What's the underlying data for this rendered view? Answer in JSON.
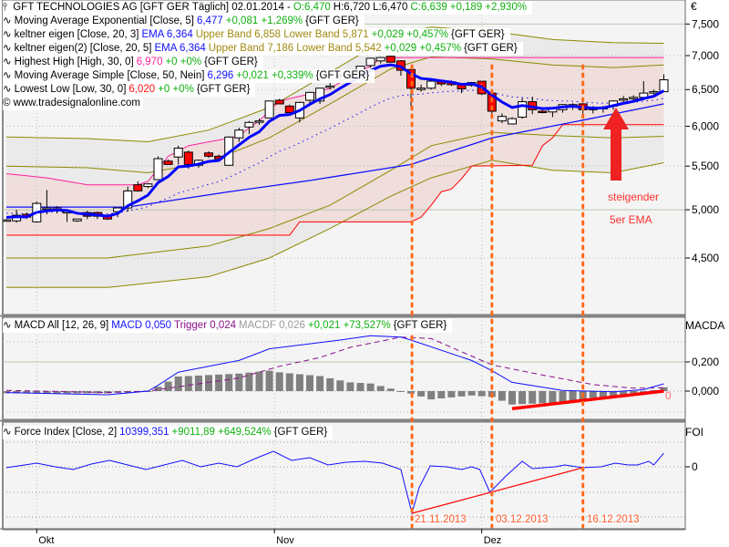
{
  "chart_data": [
    {
      "type": "candlestick",
      "title": "GFT TECHNOLOGIES AG [GFT GER  Täglich] 02.01.2014",
      "header_values": {
        "O": "O:6,470",
        "H": "H:6,720",
        "L": "L:6,470",
        "C": "C:6,639",
        "change": "+0,189",
        "change_pct": "+2,930%"
      },
      "y_scale": "log",
      "currency_label": "€",
      "y_ticks": [
        "7,500",
        "7,000",
        "6,500",
        "6,000",
        "5,500",
        "5,000",
        "4,500"
      ],
      "y_tick_values": [
        7.5,
        7.0,
        6.5,
        6.0,
        5.5,
        5.0,
        4.5
      ],
      "x_ticks": [
        "Okt",
        "Nov",
        "Dez"
      ],
      "x_tick_bars": [
        3,
        26.5,
        47
      ],
      "ohlc": [
        [
          4.89,
          4.9,
          4.88,
          4.89
        ],
        [
          4.88,
          5.0,
          4.86,
          4.94
        ],
        [
          4.95,
          4.97,
          4.9,
          4.92
        ],
        [
          4.87,
          5.09,
          4.86,
          5.07
        ],
        [
          5.02,
          5.22,
          4.95,
          5.02
        ],
        [
          5.02,
          5.04,
          4.96,
          5.02
        ],
        [
          4.98,
          5.0,
          4.87,
          4.98
        ],
        [
          4.88,
          4.89,
          4.87,
          4.9
        ],
        [
          4.97,
          4.99,
          4.9,
          4.93
        ],
        [
          4.97,
          4.98,
          4.9,
          4.93
        ],
        [
          4.93,
          4.95,
          4.89,
          4.9
        ],
        [
          4.98,
          5.02,
          4.92,
          5.02
        ],
        [
          5.02,
          5.26,
          4.98,
          5.21
        ],
        [
          5.28,
          5.32,
          5.2,
          5.21
        ],
        [
          5.26,
          5.3,
          5.24,
          5.29
        ],
        [
          5.34,
          5.62,
          5.34,
          5.59
        ],
        [
          5.56,
          5.58,
          5.52,
          5.52
        ],
        [
          5.61,
          5.75,
          5.52,
          5.72
        ],
        [
          5.67,
          5.69,
          5.47,
          5.52
        ],
        [
          5.51,
          5.58,
          5.48,
          5.57
        ],
        [
          5.66,
          5.68,
          5.6,
          5.62
        ],
        [
          5.62,
          5.64,
          5.58,
          5.59
        ],
        [
          5.51,
          5.87,
          5.51,
          5.86
        ],
        [
          5.85,
          5.98,
          5.8,
          5.95
        ],
        [
          5.99,
          6.07,
          5.9,
          6.05
        ],
        [
          6.07,
          6.1,
          6.02,
          6.07
        ],
        [
          6.11,
          6.34,
          6.11,
          6.34
        ],
        [
          6.35,
          6.37,
          6.3,
          6.3
        ],
        [
          6.27,
          6.29,
          6.18,
          6.18
        ],
        [
          6.11,
          6.33,
          6.05,
          6.32
        ],
        [
          6.35,
          6.47,
          6.3,
          6.46
        ],
        [
          6.34,
          6.52,
          6.3,
          6.52
        ],
        [
          6.55,
          6.6,
          6.5,
          6.55
        ],
        [
          6.71,
          6.73,
          6.6,
          6.7
        ],
        [
          6.69,
          6.77,
          6.62,
          6.77
        ],
        [
          6.74,
          6.84,
          6.72,
          6.84
        ],
        [
          6.85,
          6.96,
          6.82,
          6.96
        ],
        [
          6.92,
          6.98,
          6.88,
          6.97
        ],
        [
          6.99,
          7.0,
          6.9,
          6.9
        ],
        [
          6.92,
          6.93,
          6.7,
          6.78
        ],
        [
          6.79,
          6.8,
          6.23,
          6.52
        ],
        [
          6.52,
          6.57,
          6.47,
          6.52
        ],
        [
          6.52,
          6.63,
          6.5,
          6.62
        ],
        [
          6.61,
          6.63,
          6.55,
          6.58
        ],
        [
          6.61,
          6.63,
          6.55,
          6.57
        ],
        [
          6.57,
          6.59,
          6.45,
          6.51
        ],
        [
          6.56,
          6.61,
          6.54,
          6.6
        ],
        [
          6.62,
          6.63,
          6.42,
          6.44
        ],
        [
          6.45,
          6.47,
          6.15,
          6.2
        ],
        [
          6.07,
          6.17,
          6.04,
          6.13
        ],
        [
          6.03,
          6.12,
          6.02,
          6.1
        ],
        [
          6.12,
          6.38,
          6.1,
          6.33
        ],
        [
          6.33,
          6.4,
          6.16,
          6.22
        ],
        [
          6.2,
          6.24,
          6.17,
          6.19
        ],
        [
          6.19,
          6.25,
          6.12,
          6.25
        ],
        [
          6.22,
          6.3,
          6.18,
          6.29
        ],
        [
          6.26,
          6.31,
          6.22,
          6.29
        ],
        [
          6.3,
          6.31,
          6.15,
          6.22
        ],
        [
          6.25,
          6.27,
          6.17,
          6.22
        ],
        [
          6.25,
          6.27,
          6.18,
          6.25
        ],
        [
          6.27,
          6.35,
          6.22,
          6.34
        ],
        [
          6.37,
          6.41,
          6.31,
          6.37
        ],
        [
          6.39,
          6.42,
          6.34,
          6.39
        ],
        [
          6.39,
          6.62,
          6.37,
          6.45
        ],
        [
          6.47,
          6.5,
          6.43,
          6.47
        ],
        [
          6.47,
          6.72,
          6.47,
          6.64
        ]
      ],
      "overlays": {
        "sma50": [
          [
            0,
            5.03
          ],
          [
            12,
            5.03
          ],
          [
            22,
            5.2
          ],
          [
            30,
            5.33
          ],
          [
            40,
            5.52
          ],
          [
            48,
            5.85
          ],
          [
            57,
            6.08
          ],
          [
            65,
            6.3
          ]
        ],
        "keltner_outer_upper": [
          [
            0,
            5.86
          ],
          [
            8,
            5.84
          ],
          [
            14,
            5.8
          ],
          [
            20,
            5.95
          ],
          [
            26,
            6.25
          ],
          [
            32,
            6.75
          ],
          [
            38,
            7.3
          ],
          [
            42,
            7.45
          ],
          [
            48,
            7.38
          ],
          [
            54,
            7.25
          ],
          [
            60,
            7.2
          ],
          [
            65,
            7.19
          ]
        ],
        "keltner_inner_upper": [
          [
            0,
            5.5
          ],
          [
            8,
            5.48
          ],
          [
            14,
            5.42
          ],
          [
            20,
            5.55
          ],
          [
            26,
            5.85
          ],
          [
            32,
            6.3
          ],
          [
            38,
            6.8
          ],
          [
            42,
            6.98
          ],
          [
            48,
            6.95
          ],
          [
            54,
            6.86
          ],
          [
            60,
            6.82
          ],
          [
            65,
            6.86
          ]
        ],
        "keltner_inner_lower": [
          [
            0,
            4.5
          ],
          [
            10,
            4.5
          ],
          [
            20,
            4.62
          ],
          [
            26,
            4.8
          ],
          [
            32,
            5.05
          ],
          [
            38,
            5.45
          ],
          [
            42,
            5.75
          ],
          [
            48,
            5.92
          ],
          [
            54,
            5.88
          ],
          [
            60,
            5.85
          ],
          [
            65,
            5.87
          ]
        ],
        "keltner_outer_lower": [
          [
            0,
            4.22
          ],
          [
            10,
            4.22
          ],
          [
            20,
            4.32
          ],
          [
            26,
            4.5
          ],
          [
            32,
            4.8
          ],
          [
            38,
            5.15
          ],
          [
            42,
            5.36
          ],
          [
            48,
            5.57
          ],
          [
            54,
            5.45
          ],
          [
            60,
            5.42
          ],
          [
            65,
            5.54
          ]
        ],
        "highest_high": [
          [
            0,
            5.41
          ],
          [
            4,
            5.36
          ],
          [
            8,
            5.28
          ],
          [
            13,
            5.28
          ],
          [
            14,
            5.32
          ],
          [
            16,
            5.62
          ],
          [
            18,
            5.75
          ],
          [
            23,
            5.87
          ],
          [
            24,
            5.98
          ],
          [
            25,
            6.07
          ],
          [
            27,
            6.34
          ],
          [
            31,
            6.47
          ],
          [
            32,
            6.52
          ],
          [
            33,
            6.6
          ],
          [
            34,
            6.73
          ],
          [
            35,
            6.77
          ],
          [
            36,
            6.84
          ],
          [
            37,
            6.96
          ],
          [
            39,
            6.97
          ],
          [
            65,
            6.97
          ]
        ],
        "lowest_low": [
          [
            0,
            4.73
          ],
          [
            28,
            4.73
          ],
          [
            29,
            4.87
          ],
          [
            40,
            4.87
          ],
          [
            41,
            4.92
          ],
          [
            42,
            5.05
          ],
          [
            43,
            5.2
          ],
          [
            44,
            5.23
          ],
          [
            45,
            5.35
          ],
          [
            46,
            5.5
          ],
          [
            52,
            5.51
          ],
          [
            53,
            5.75
          ],
          [
            54,
            5.85
          ],
          [
            55,
            6.02
          ],
          [
            65,
            6.02
          ]
        ]
      },
      "colors": {
        "up": "#ffffff",
        "down": "#ff0000",
        "ema5": "#0000ff",
        "sma": "#0000ff",
        "keltner": "#808000",
        "highest_high": "#ff1f9f",
        "lowest_low": "#ff0000",
        "band_fill": "#ebebeb",
        "hh_ll_fill": "#f0dede"
      }
    },
    {
      "type": "line",
      "panel": "MACD",
      "y_label": "MACDA",
      "y_ticks": [
        "0,200",
        "0,000"
      ],
      "y_tick_values": [
        0.2,
        0.0
      ],
      "value_label": "0",
      "series": [
        {
          "name": "MACD",
          "points": [
            [
              0,
              -0.01
            ],
            [
              10,
              -0.025
            ],
            [
              14,
              0.0
            ],
            [
              15,
              0.04
            ],
            [
              17,
              0.13
            ],
            [
              23,
              0.21
            ],
            [
              26,
              0.29
            ],
            [
              33,
              0.35
            ],
            [
              36,
              0.38
            ],
            [
              39,
              0.37
            ],
            [
              40,
              0.35
            ],
            [
              46,
              0.21
            ],
            [
              48,
              0.14
            ],
            [
              50,
              0.06
            ],
            [
              55,
              0.005
            ],
            [
              60,
              -0.005
            ],
            [
              63,
              0.01
            ],
            [
              65,
              0.05
            ]
          ]
        },
        {
          "name": "Trigger",
          "points": [
            [
              0,
              0.005
            ],
            [
              10,
              -0.01
            ],
            [
              14,
              0.0
            ],
            [
              17,
              0.03
            ],
            [
              23,
              0.09
            ],
            [
              27,
              0.17
            ],
            [
              31,
              0.23
            ],
            [
              34,
              0.3
            ],
            [
              39,
              0.37
            ],
            [
              42,
              0.36
            ],
            [
              48,
              0.18
            ],
            [
              53,
              0.11
            ],
            [
              58,
              0.045
            ],
            [
              62,
              0.02
            ],
            [
              65,
              0.024
            ]
          ]
        }
      ],
      "trendline": [
        [
          50,
          -0.12
        ],
        [
          65,
          0.0
        ]
      ]
    },
    {
      "type": "line",
      "panel": "Force Index",
      "y_label": "FOI",
      "y_ticks": [
        "0"
      ],
      "y_tick_values": [
        0
      ],
      "series": [
        {
          "name": "Force Index",
          "points": [
            [
              0,
              -700
            ],
            [
              3,
              2800
            ],
            [
              4.8,
              0
            ],
            [
              6.6,
              -2100
            ],
            [
              8.4,
              2100
            ],
            [
              10.2,
              4900
            ],
            [
              12,
              1400
            ],
            [
              13.8,
              -2100
            ],
            [
              15.6,
              1400
            ],
            [
              17.4,
              4900
            ],
            [
              19.2,
              0
            ],
            [
              21,
              2800
            ],
            [
              22.8,
              0
            ],
            [
              24.6,
              6300
            ],
            [
              26.4,
              11900
            ],
            [
              28.2,
              4900
            ],
            [
              30,
              7000
            ],
            [
              31.8,
              1400
            ],
            [
              33.6,
              3500
            ],
            [
              35.4,
              4200
            ],
            [
              37.2,
              2800
            ],
            [
              39,
              -2100
            ],
            [
              40.1,
              -35700
            ],
            [
              40.8,
              -16100
            ],
            [
              41.9,
              700
            ],
            [
              43.5,
              0
            ],
            [
              45,
              -2100
            ],
            [
              46,
              0
            ],
            [
              46.8,
              -2100
            ],
            [
              47.8,
              -19600
            ],
            [
              49.4,
              -7000
            ],
            [
              51,
              4200
            ],
            [
              52,
              -1400
            ],
            [
              54.3,
              0
            ],
            [
              55.2,
              1400
            ],
            [
              57,
              -700
            ],
            [
              58.8,
              0
            ],
            [
              60.2,
              2800
            ],
            [
              61.5,
              1400
            ],
            [
              62.4,
              1400
            ],
            [
              63.5,
              4200
            ],
            [
              64,
              1400
            ],
            [
              65,
              10399
            ]
          ]
        }
      ],
      "trendline": [
        [
          40.1,
          -35700
        ],
        [
          57,
          -700
        ]
      ]
    }
  ],
  "legend": {
    "title": "GFT TECHNOLOGIES AG [GFT GER  Täglich] 02.01.2014 -",
    "ema": {
      "label": "Moving Average Exponential [Close, 5]",
      "value": "6,477",
      "chg": "+0,081 +1,269%",
      "sym": "{GFT GER}"
    },
    "kelt1": {
      "label": "keltner eigen [Close, 20, 3]",
      "ema": "EMA 6,364",
      "bands": "Upper Band 6,858 Lower Band 5,871",
      "chg": "+0,029 +0,457%",
      "sym": "{GFT GER}"
    },
    "kelt2": {
      "label": "keltner eigen(2) [Close, 20, 5]",
      "ema": "EMA 6,364",
      "bands": "Upper Band 7,186 Lower Band 5,542",
      "chg": "+0,029 +0,457%",
      "sym": "{GFT GER}"
    },
    "hh": {
      "label": "Highest High [High, 30, 0]",
      "value": "6,970",
      "chg": "+0 +0%",
      "sym": "{GFT GER}"
    },
    "sma": {
      "label": "Moving Average Simple [Close, 50, Nein]",
      "value": "6,296",
      "chg": "+0,021 +0,339%",
      "sym": "{GFT GER}"
    },
    "ll": {
      "label": "Lowest Low [Low, 30, 0]",
      "value": "6,020",
      "chg": "+0 +0%",
      "sym": "{GFT GER}"
    },
    "copyright": "© www.tradesignalonline.com",
    "macd": {
      "label": "MACD All [12, 26, 9]",
      "macd": "MACD 0,050",
      "trigger": "Trigger 0,024",
      "macdf": "MACDF 0,026",
      "chg": "+0,021 +73,527%",
      "sym": "{GFT GER}"
    },
    "foi": {
      "label": "Force Index [Close, 2]",
      "value": "10399,351",
      "chg": "+9011,89 +649,524%",
      "sym": "{GFT GER}"
    }
  },
  "annotations": {
    "dates": [
      "21.11.2013",
      "03.12.2013",
      "16.12.2013"
    ],
    "date_bars": [
      40.1,
      48,
      57
    ],
    "arrow_text_1": "steigender",
    "arrow_text_2": "5er EMA",
    "color": "#ff2020",
    "marker_color": "#ff6a1a"
  }
}
